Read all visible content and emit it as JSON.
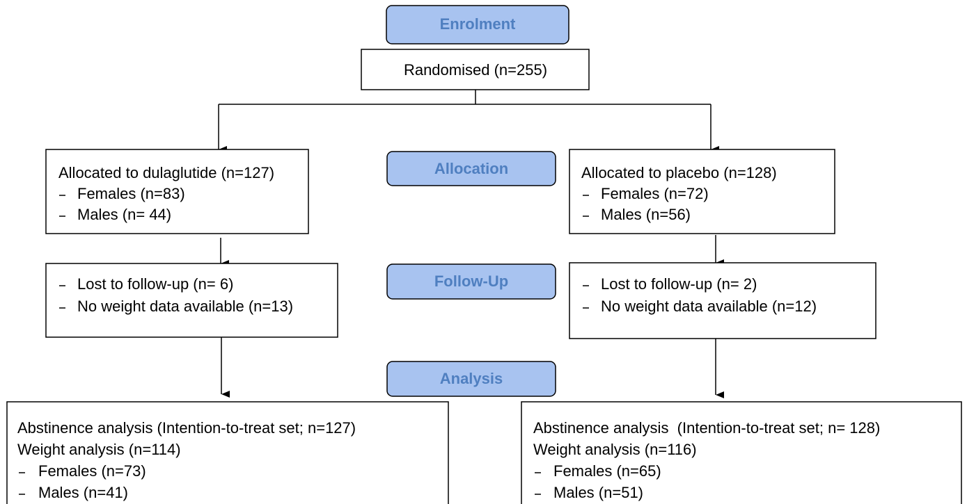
{
  "stages": [
    "Enrolment",
    "Allocation",
    "Follow-Up",
    "Analysis"
  ],
  "randomised": "Randomised (n=255)",
  "arms": [
    {
      "allocation": {
        "title": "Allocated to dulaglutide (n=127)",
        "items": [
          "Females (n=83)",
          "Males (n= 44)"
        ]
      },
      "follow_up": [
        "Lost to follow-up (n= 6)",
        "No weight data available (n=13)"
      ],
      "analysis": {
        "lines": [
          "Abstinence analysis (Intention-to-treat set; n=127)",
          "Weight analysis (n=114)"
        ],
        "items": [
          "Females (n=73)",
          "Males (n=41)"
        ]
      }
    },
    {
      "allocation": {
        "title": "Allocated to placebo (n=128)",
        "items": [
          "Females (n=72)",
          "Males (n=56)"
        ]
      },
      "follow_up": [
        "Lost to follow-up (n= 2)",
        "No weight data available (n=12)"
      ],
      "analysis": {
        "lines": [
          "Abstinence analysis  (Intention-to-treat set; n= 128)",
          "Weight analysis (n=116)"
        ],
        "items": [
          "Females (n=65)",
          "Males (n=51)"
        ]
      }
    }
  ]
}
